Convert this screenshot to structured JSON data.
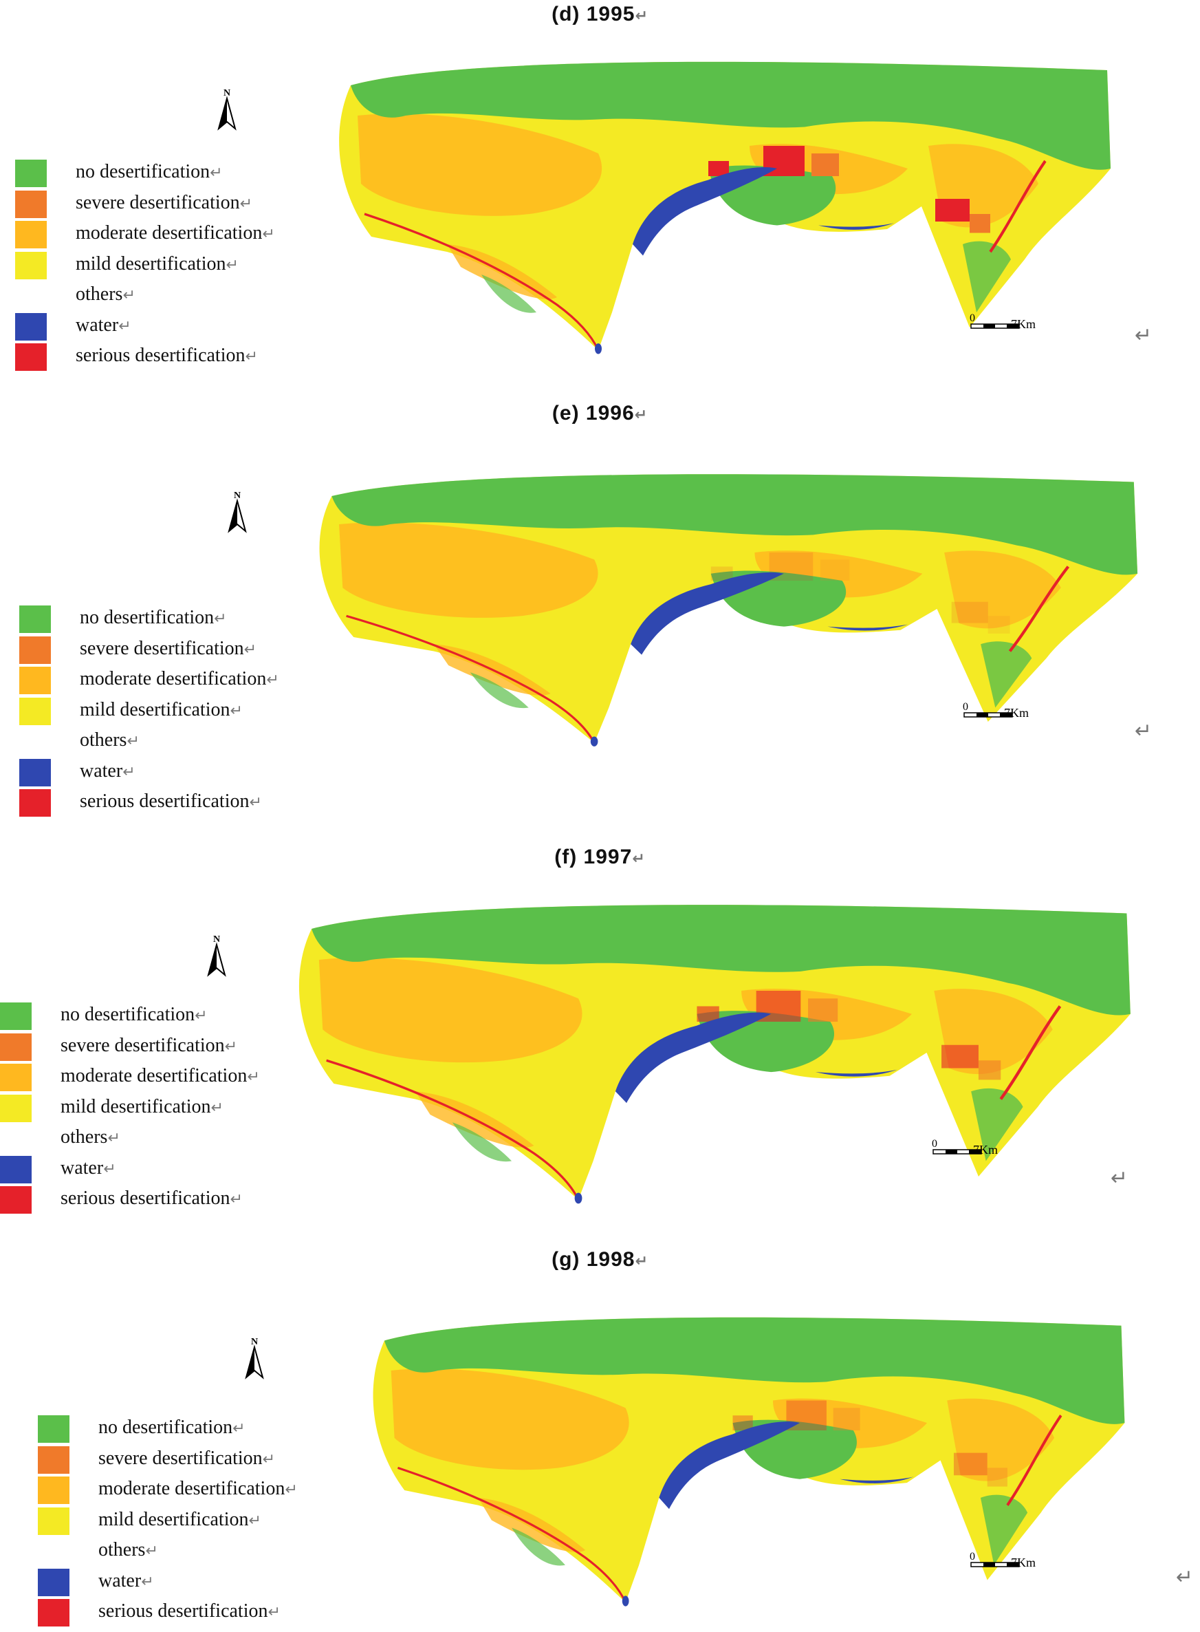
{
  "panels": [
    {
      "title": "(d) 1995",
      "year": "1995"
    },
    {
      "title": "(e) 1996",
      "year": "1996"
    },
    {
      "title": "(f) 1997",
      "year": "1997"
    },
    {
      "title": "(g) 1998",
      "year": "1998"
    }
  ],
  "legend": [
    {
      "label": "no desertification",
      "color": "#5bbf4a"
    },
    {
      "label": "severe desertification",
      "color": "#f07a2a"
    },
    {
      "label": "moderate desertification",
      "color": "#ffb81f"
    },
    {
      "label": "mild desertification",
      "color": "#f4ea24"
    },
    {
      "label": "others",
      "color": ""
    },
    {
      "label": "water",
      "color": "#2f47b0"
    },
    {
      "label": "serious desertification",
      "color": "#e5212a"
    }
  ],
  "north_label": "N",
  "scale": {
    "start": "0",
    "end": "7Km"
  },
  "return_mark": "↵"
}
